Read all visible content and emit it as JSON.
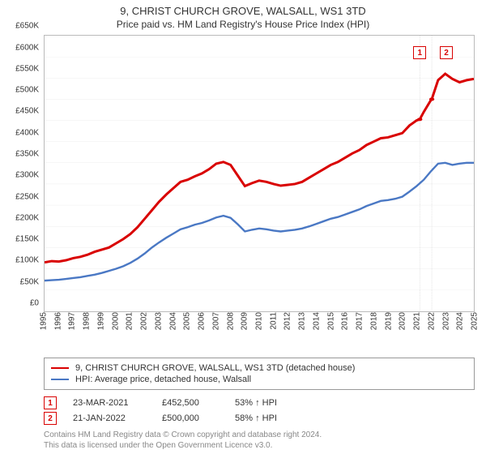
{
  "title": "9, CHRIST CHURCH GROVE, WALSALL, WS1 3TD",
  "subtitle": "Price paid vs. HM Land Registry's House Price Index (HPI)",
  "chart": {
    "type": "line",
    "background_color": "#ffffff",
    "border_color": "#bbbbbb",
    "grid_color": "#e8e8e8",
    "label_fontsize": 10,
    "ylim": [
      0,
      650000
    ],
    "ytick_step": 50000,
    "y_ticks": [
      "£0",
      "£50K",
      "£100K",
      "£150K",
      "£200K",
      "£250K",
      "£300K",
      "£350K",
      "£400K",
      "£450K",
      "£500K",
      "£550K",
      "£600K",
      "£650K"
    ],
    "xlim": [
      1995,
      2025
    ],
    "x_ticks": [
      1995,
      1996,
      1997,
      1998,
      1999,
      2000,
      2001,
      2002,
      2003,
      2004,
      2005,
      2006,
      2007,
      2008,
      2009,
      2010,
      2011,
      2012,
      2013,
      2014,
      2015,
      2016,
      2017,
      2018,
      2019,
      2020,
      2021,
      2022,
      2023,
      2024,
      2025
    ],
    "series": [
      {
        "name": "9, CHRIST CHURCH GROVE, WALSALL, WS1 3TD (detached house)",
        "color": "#d90000",
        "line_width": 1.5,
        "x": [
          1995,
          1995.5,
          1996,
          1996.5,
          1997,
          1997.5,
          1998,
          1998.5,
          1999,
          1999.5,
          2000,
          2000.5,
          2001,
          2001.5,
          2002,
          2002.5,
          2003,
          2003.5,
          2004,
          2004.5,
          2005,
          2005.5,
          2006,
          2006.5,
          2007,
          2007.5,
          2008,
          2008.5,
          2009,
          2009.5,
          2010,
          2010.5,
          2011,
          2011.5,
          2012,
          2012.5,
          2013,
          2013.5,
          2014,
          2014.5,
          2015,
          2015.5,
          2016,
          2016.5,
          2017,
          2017.5,
          2018,
          2018.5,
          2019,
          2019.5,
          2020,
          2020.5,
          2021,
          2021.22,
          2021.5,
          2022,
          2022.06,
          2022.5,
          2023,
          2023.5,
          2024,
          2024.5,
          2025
        ],
        "y": [
          115000,
          118000,
          117000,
          120000,
          125000,
          128000,
          133000,
          140000,
          145000,
          150000,
          160000,
          170000,
          182000,
          198000,
          218000,
          238000,
          258000,
          275000,
          290000,
          305000,
          310000,
          318000,
          325000,
          335000,
          348000,
          352000,
          345000,
          320000,
          295000,
          302000,
          308000,
          305000,
          300000,
          296000,
          298000,
          300000,
          305000,
          315000,
          325000,
          335000,
          345000,
          352000,
          362000,
          372000,
          380000,
          392000,
          400000,
          408000,
          410000,
          415000,
          420000,
          438000,
          450000,
          452500,
          470000,
          498000,
          500000,
          545000,
          560000,
          548000,
          540000,
          545000,
          548000
        ]
      },
      {
        "name": "HPI: Average price, detached house, Walsall",
        "color": "#4a78c4",
        "line_width": 1.2,
        "x": [
          1995,
          1995.5,
          1996,
          1996.5,
          1997,
          1997.5,
          1998,
          1998.5,
          1999,
          1999.5,
          2000,
          2000.5,
          2001,
          2001.5,
          2002,
          2002.5,
          2003,
          2003.5,
          2004,
          2004.5,
          2005,
          2005.5,
          2006,
          2006.5,
          2007,
          2007.5,
          2008,
          2008.5,
          2009,
          2009.5,
          2010,
          2010.5,
          2011,
          2011.5,
          2012,
          2012.5,
          2013,
          2013.5,
          2014,
          2014.5,
          2015,
          2015.5,
          2016,
          2016.5,
          2017,
          2017.5,
          2018,
          2018.5,
          2019,
          2019.5,
          2020,
          2020.5,
          2021,
          2021.5,
          2022,
          2022.5,
          2023,
          2023.5,
          2024,
          2024.5,
          2025
        ],
        "y": [
          72000,
          73000,
          74000,
          76000,
          78000,
          80000,
          83000,
          86000,
          90000,
          95000,
          100000,
          106000,
          114000,
          124000,
          136000,
          150000,
          162000,
          173000,
          183000,
          193000,
          198000,
          204000,
          208000,
          214000,
          221000,
          225000,
          220000,
          205000,
          188000,
          192000,
          195000,
          193000,
          190000,
          188000,
          190000,
          192000,
          195000,
          200000,
          206000,
          212000,
          218000,
          222000,
          228000,
          234000,
          240000,
          248000,
          254000,
          260000,
          262000,
          265000,
          270000,
          282000,
          295000,
          310000,
          330000,
          348000,
          350000,
          345000,
          348000,
          350000,
          350000
        ]
      }
    ],
    "markers": [
      {
        "label": "1",
        "x": 2021.22,
        "y": 452500,
        "date": "23-MAR-2021",
        "price": "£452,500",
        "pct": "53% ↑ HPI",
        "color": "#d90000",
        "point_color": "#d90000"
      },
      {
        "label": "2",
        "x": 2022.06,
        "y": 500000,
        "date": "21-JAN-2022",
        "price": "£500,000",
        "pct": "58% ↑ HPI",
        "color": "#d90000",
        "point_color": "#d90000"
      }
    ],
    "marker_line_color": "#cccccc",
    "marker_box_top_y": 610000,
    "marker_box_fill": "#ffffff"
  },
  "footer_line1": "Contains HM Land Registry data © Crown copyright and database right 2024.",
  "footer_line2": "This data is licensed under the Open Government Licence v3.0."
}
